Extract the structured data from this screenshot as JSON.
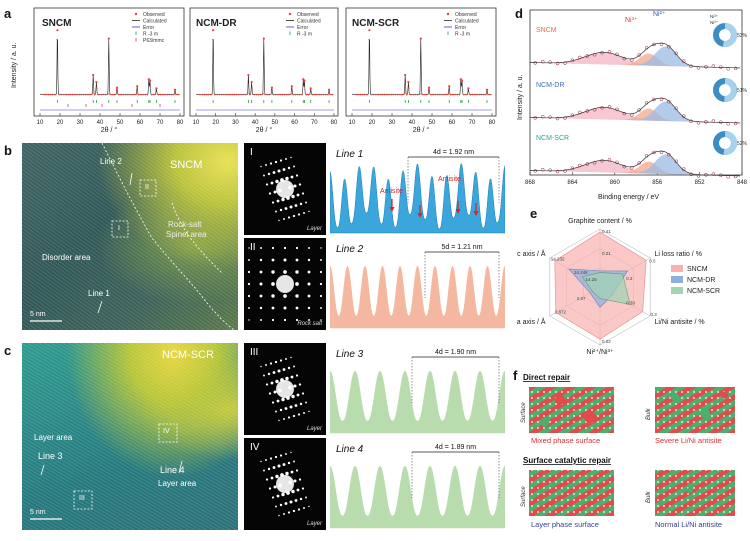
{
  "panels": {
    "a": "a",
    "b": "b",
    "c": "c",
    "d": "d",
    "e": "e",
    "f": "f"
  },
  "xrd": {
    "ylabel": "Intensity / a. u.",
    "xlabel": "2θ / °",
    "xticks": [
      "10",
      "20",
      "30",
      "40",
      "50",
      "60",
      "70",
      "80"
    ],
    "subplots": [
      {
        "title": "SNCM",
        "legend": [
          "Observed",
          "Calculated",
          "Error",
          "R -3 m",
          "P63/mmc"
        ]
      },
      {
        "title": "NCM-DR",
        "legend": [
          "Observed",
          "Calculated",
          "Error",
          "R -3 m"
        ]
      },
      {
        "title": "NCM-SCR",
        "legend": [
          "Observed",
          "Calculated",
          "Error",
          "R -3 m"
        ]
      }
    ],
    "colors": {
      "observed": "#e8423f",
      "calculated": "#222222",
      "error": "#3d3dbf",
      "r3m": "#2e9e3a",
      "p63": "#c2399b"
    }
  },
  "tem_b": {
    "title": "SNCM",
    "labels": [
      "Line 2",
      "II",
      "I",
      "Rock-salt",
      "Spinel area",
      "Disorder area",
      "Line 1"
    ],
    "scale": "5 nm"
  },
  "tem_c": {
    "title": "NCM-SCR",
    "labels": [
      "IV",
      "Layer area",
      "Line 3",
      "Line 4",
      "III",
      "Layer area"
    ],
    "scale": "5 nm"
  },
  "fft": [
    {
      "num": "I",
      "cap": "Layer"
    },
    {
      "num": "II",
      "cap": "Rock salt"
    },
    {
      "num": "III",
      "cap": "Layer"
    },
    {
      "num": "IV",
      "cap": "Layer"
    }
  ],
  "profiles": [
    {
      "title": "Line 1",
      "dist": "4d = 1.92 nm",
      "notes": [
        "Antisite",
        "Antisite"
      ],
      "color": "#3aa6dc"
    },
    {
      "title": "Line 2",
      "dist": "5d = 1.21 nm",
      "color": "#f4b8a0"
    },
    {
      "title": "Line 3",
      "dist": "4d = 1.90 nm",
      "color": "#b9dcae"
    },
    {
      "title": "Line 4",
      "dist": "4d = 1.89 nm",
      "color": "#b9dcae"
    }
  ],
  "xps": {
    "ylabel": "Intensity / a. u.",
    "xlabel": "Binding energy / eV",
    "xticks": [
      "868",
      "864",
      "860",
      "856",
      "852",
      "848"
    ],
    "labels": [
      "SNCM",
      "NCM-DR",
      "NCM-SCR"
    ],
    "ni3": "Ni³⁺",
    "ni2": "Ni²⁺",
    "donut_legend": [
      "Ni³⁺",
      "Ni²⁺"
    ],
    "donut_pct": [
      "53%",
      "51%",
      "52%"
    ]
  },
  "radar": {
    "axes": [
      "Graphite content / %",
      "Li loss ratio / %",
      "Li/Ni antisite / %",
      "Ni²⁺/Ni³⁺",
      "a axis / Å",
      "c axis / Å"
    ],
    "ticks": [
      "0.41",
      "0.21",
      "0.5",
      "0.3",
      "0.3",
      "0.39",
      "0.02",
      "2.872",
      "2.87",
      "14.232",
      "14.248",
      "14.26"
    ],
    "legend": [
      "SNCM",
      "NCM-DR",
      "NCM-SCR"
    ],
    "colors": [
      "#f7b2b0",
      "#8db0dd",
      "#9fd4b5"
    ]
  },
  "repair": {
    "direct": "Direct repair",
    "surface_catalytic": "Surface catalytic repair",
    "surface": "Surface",
    "bulk": "Bulk",
    "captions": [
      "Mixed phase surface",
      "Severe Li/Ni antisite",
      "Layer phase surface",
      "Normal Li/Ni antisite"
    ]
  }
}
